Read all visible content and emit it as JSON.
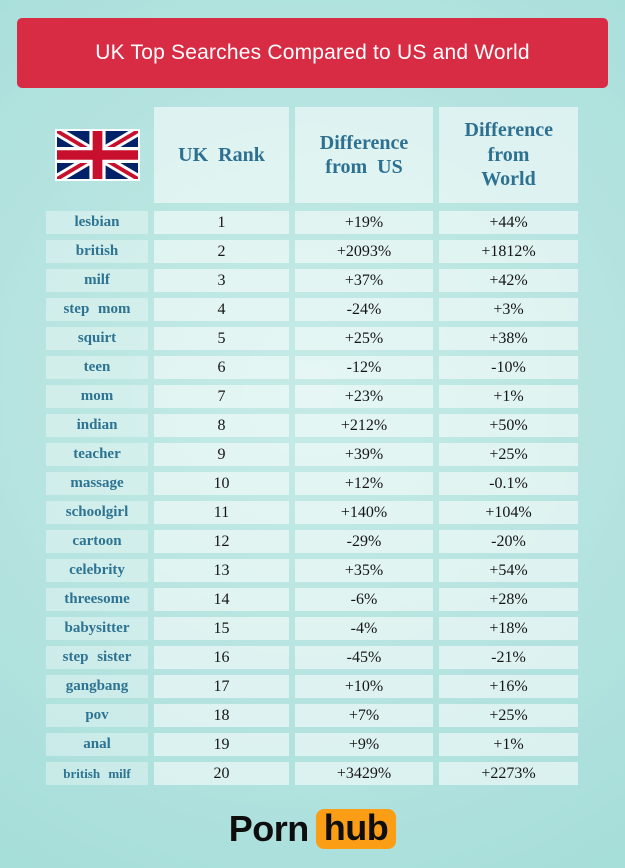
{
  "banner": {
    "title": "UK Top Searches Compared to US and World"
  },
  "table": {
    "flag": "united-kingdom-flag",
    "headers": {
      "rank": "UK Rank",
      "diff_us": "Difference from US",
      "diff_world": "Difference from World"
    }
  },
  "footer": {
    "brand_part_1": "Porn",
    "brand_part_2": "hub"
  },
  "colors": {
    "banner_red": "#d82b44",
    "background_teal_edge": "#9bdad6",
    "background_teal_center": "#c6ebe7",
    "header_text_blue": "#2e7090",
    "term_text_blue": "#2e7391",
    "data_text": "#151515",
    "pornhub_orange": "#fb9e16",
    "flag_navy": "#012169",
    "flag_red": "#C8102E"
  },
  "chart_data": {
    "type": "table",
    "title": "UK Top Searches Compared to US and World",
    "row_label_column": "search term (header shows UK flag)",
    "columns": [
      "UK Rank",
      "Difference from US",
      "Difference from World"
    ],
    "rows": [
      {
        "term": "lesbian",
        "rank": "1",
        "diff_us": "+19%",
        "diff_world": "+44%"
      },
      {
        "term": "british",
        "rank": "2",
        "diff_us": "+2093%",
        "diff_world": "+1812%"
      },
      {
        "term": "milf",
        "rank": "3",
        "diff_us": "+37%",
        "diff_world": "+42%"
      },
      {
        "term": "step mom",
        "rank": "4",
        "diff_us": "-24%",
        "diff_world": "+3%"
      },
      {
        "term": "squirt",
        "rank": "5",
        "diff_us": "+25%",
        "diff_world": "+38%"
      },
      {
        "term": "teen",
        "rank": "6",
        "diff_us": "-12%",
        "diff_world": "-10%"
      },
      {
        "term": "mom",
        "rank": "7",
        "diff_us": "+23%",
        "diff_world": "+1%"
      },
      {
        "term": "indian",
        "rank": "8",
        "diff_us": "+212%",
        "diff_world": "+50%"
      },
      {
        "term": "teacher",
        "rank": "9",
        "diff_us": "+39%",
        "diff_world": "+25%"
      },
      {
        "term": "massage",
        "rank": "10",
        "diff_us": "+12%",
        "diff_world": "-0.1%"
      },
      {
        "term": "schoolgirl",
        "rank": "11",
        "diff_us": "+140%",
        "diff_world": "+104%"
      },
      {
        "term": "cartoon",
        "rank": "12",
        "diff_us": "-29%",
        "diff_world": "-20%"
      },
      {
        "term": "celebrity",
        "rank": "13",
        "diff_us": "+35%",
        "diff_world": "+54%"
      },
      {
        "term": "threesome",
        "rank": "14",
        "diff_us": "-6%",
        "diff_world": "+28%"
      },
      {
        "term": "babysitter",
        "rank": "15",
        "diff_us": "-4%",
        "diff_world": "+18%"
      },
      {
        "term": "step sister",
        "rank": "16",
        "diff_us": "-45%",
        "diff_world": "-21%"
      },
      {
        "term": "gangbang",
        "rank": "17",
        "diff_us": "+10%",
        "diff_world": "+16%"
      },
      {
        "term": "pov",
        "rank": "18",
        "diff_us": "+7%",
        "diff_world": "+25%"
      },
      {
        "term": "anal",
        "rank": "19",
        "diff_us": "+9%",
        "diff_world": "+1%"
      },
      {
        "term": "british milf",
        "rank": "20",
        "diff_us": "+3429%",
        "diff_world": "+2273%"
      }
    ]
  }
}
